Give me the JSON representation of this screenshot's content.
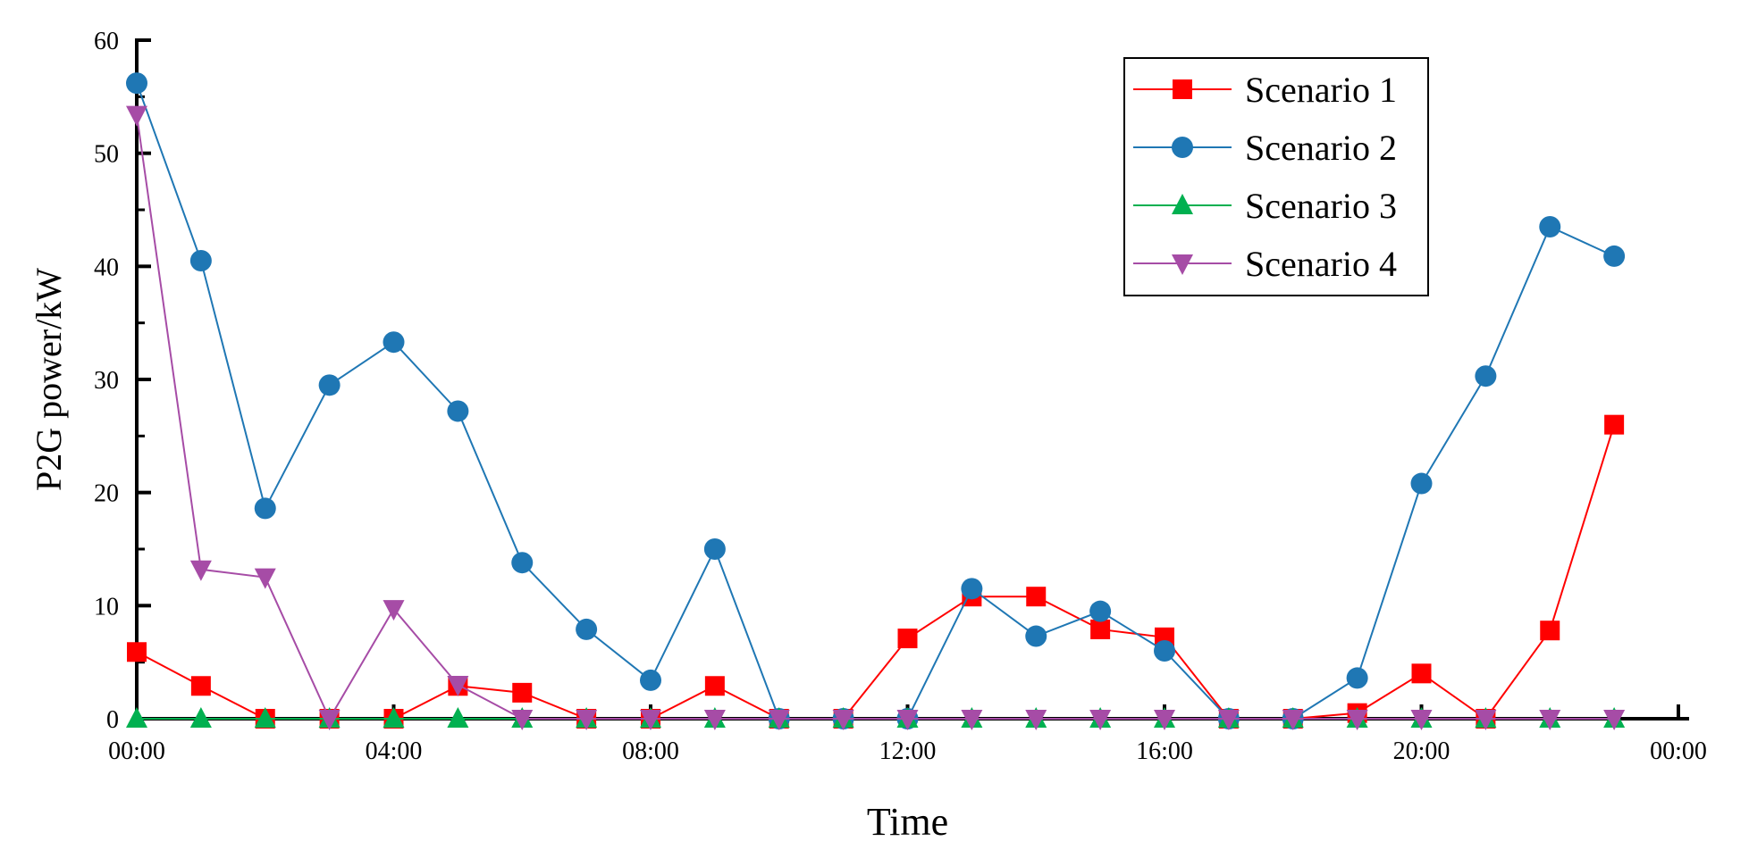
{
  "chart_data": {
    "type": "line",
    "title": "",
    "xlabel": "Time",
    "ylabel": "P2G power/kW",
    "x_ticks": [
      "00:00",
      "04:00",
      "08:00",
      "12:00",
      "16:00",
      "20:00",
      "00:00"
    ],
    "y_ticks": [
      "0",
      "10",
      "20",
      "30",
      "40",
      "50",
      "60"
    ],
    "xlim": [
      0,
      24
    ],
    "ylim": [
      0,
      60
    ],
    "grid": false,
    "legend_position": "top-right",
    "x": [
      0,
      1,
      2,
      3,
      4,
      5,
      6,
      7,
      8,
      9,
      10,
      11,
      12,
      13,
      14,
      15,
      16,
      17,
      18,
      19,
      20,
      21,
      22,
      23
    ],
    "series": [
      {
        "name": "Scenario 1",
        "color": "#FF0000",
        "marker": "square",
        "values": [
          5.9,
          2.9,
          0,
          0,
          0,
          2.9,
          2.3,
          0,
          0,
          2.9,
          0,
          0,
          7.1,
          10.8,
          10.8,
          7.9,
          7.2,
          0,
          0,
          0.5,
          4.0,
          0,
          7.8,
          26.0
        ]
      },
      {
        "name": "Scenario 2",
        "color": "#1F77B4",
        "marker": "circle",
        "values": [
          56.2,
          40.5,
          18.6,
          29.5,
          33.3,
          27.2,
          13.8,
          7.9,
          3.4,
          15.0,
          0,
          0,
          0,
          11.5,
          7.3,
          9.5,
          6.0,
          0,
          0,
          3.6,
          20.8,
          30.3,
          43.5,
          40.9
        ]
      },
      {
        "name": "Scenario 3",
        "color": "#00B050",
        "marker": "triangle-up",
        "values": [
          0,
          0,
          0,
          0,
          0,
          0,
          0,
          0,
          0,
          0,
          0,
          0,
          0,
          0,
          0,
          0,
          0,
          0,
          0,
          0,
          0,
          0,
          0,
          0
        ]
      },
      {
        "name": "Scenario 4",
        "color": "#A64CA6",
        "marker": "triangle-down",
        "values": [
          53.4,
          13.2,
          12.5,
          0,
          9.7,
          3.0,
          0,
          0,
          0,
          0,
          0,
          0,
          0,
          0,
          0,
          0,
          0,
          0,
          0,
          0,
          0,
          0,
          0,
          0
        ]
      }
    ]
  }
}
